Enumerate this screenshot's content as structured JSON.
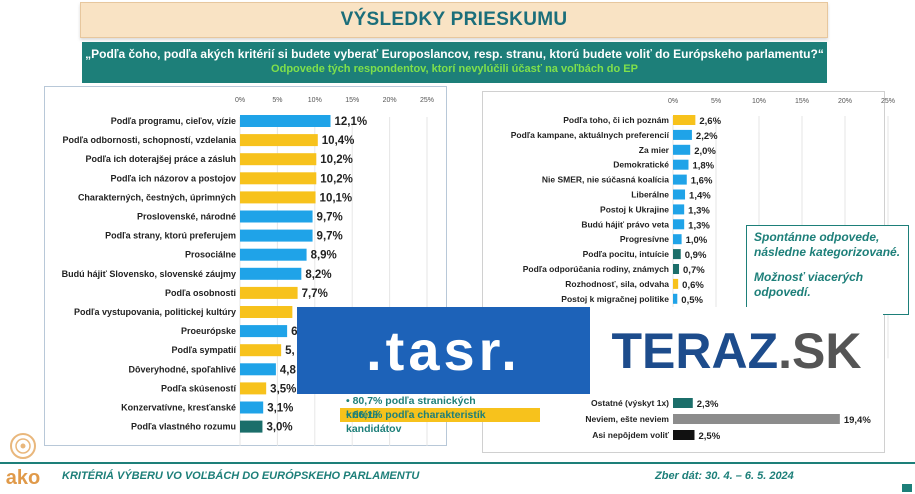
{
  "title": "VÝSLEDKY PRIESKUMU",
  "question": "„Podľa čoho, podľa akých kritérií si budete vyberať Europoslancov, resp. stranu, ktorú budete voliť do Európskeho parlamentu?“",
  "subtitle": "Odpovede tých respondentov, ktorí nevylúčili účasť na voľbách do EP",
  "note": {
    "line1": "Spontánne odpovede, následne kategorizované.",
    "line2": "Možnosť viacerých odpovedí."
  },
  "watermark": {
    "tasr": ".tasr.",
    "teraz_main": "TERAZ",
    "teraz_dot": ".SK"
  },
  "summary": {
    "party": "80,7% podľa stranických kritérií",
    "candidate": "66,1% podľa charakteristík kandidátov"
  },
  "footer": {
    "left": "KRITÉRIÁ VÝBERU VO VOĽBÁCH DO EURÓPSKEHO PARLAMENTU",
    "right": "Zber dát: 30. 4. – 6. 5. 2024"
  },
  "logo_text": "ako",
  "colors": {
    "teal": "#1d7f79",
    "blue": "#1fa3e8",
    "yellow": "#f7c21c",
    "dark_teal": "#1b6e6a",
    "gray": "#8c8c8c",
    "black": "#111111"
  },
  "chart_data": [
    {
      "type": "bar",
      "orientation": "horizontal",
      "xlim": [
        0,
        25
      ],
      "ticks": [
        "0%",
        "5%",
        "10%",
        "15%",
        "20%",
        "25%"
      ],
      "bars": [
        {
          "label": "Podľa programu, cieľov, vízie",
          "value": 12.1,
          "text": "12,1%",
          "color": "blue"
        },
        {
          "label": "Podľa odbornosti, schopností, vzdelania",
          "value": 10.4,
          "text": "10,4%",
          "color": "yellow"
        },
        {
          "label": "Podľa ich doterajšej práce a zásluh",
          "value": 10.2,
          "text": "10,2%",
          "color": "yellow"
        },
        {
          "label": "Podľa ich názorov a postojov",
          "value": 10.2,
          "text": "10,2%",
          "color": "yellow"
        },
        {
          "label": "Charakterných, čestných, úprimných",
          "value": 10.1,
          "text": "10,1%",
          "color": "yellow"
        },
        {
          "label": "Proslovenské, národné",
          "value": 9.7,
          "text": "9,7%",
          "color": "blue"
        },
        {
          "label": "Podľa strany, ktorú preferujem",
          "value": 9.7,
          "text": "9,7%",
          "color": "blue"
        },
        {
          "label": "Prosociálne",
          "value": 8.9,
          "text": "8,9%",
          "color": "blue"
        },
        {
          "label": "Budú hájiť Slovensko, slovenské záujmy",
          "value": 8.2,
          "text": "8,2%",
          "color": "blue"
        },
        {
          "label": "Podľa osobnosti",
          "value": 7.7,
          "text": "7,7%",
          "color": "yellow"
        },
        {
          "label": "Podľa vystupovania, politickej kultúry",
          "value": 7.0,
          "text": "",
          "color": "yellow"
        },
        {
          "label": "Proeurópske",
          "value": 6.3,
          "text": "6",
          "color": "blue"
        },
        {
          "label": "Podľa sympatií",
          "value": 5.5,
          "text": "5,",
          "color": "yellow"
        },
        {
          "label": "Dôveryhodné, spoľahlivé",
          "value": 4.8,
          "text": "4,8",
          "color": "blue"
        },
        {
          "label": "Podľa skúseností",
          "value": 3.5,
          "text": "3,5%",
          "color": "yellow"
        },
        {
          "label": "Konzervatívne, kresťanské",
          "value": 3.1,
          "text": "3,1%",
          "color": "blue"
        },
        {
          "label": "Podľa vlastného rozumu",
          "value": 3.0,
          "text": "3,0%",
          "color": "dark_teal"
        }
      ]
    },
    {
      "type": "bar",
      "orientation": "horizontal",
      "xlim": [
        0,
        25
      ],
      "ticks": [
        "0%",
        "5%",
        "10%",
        "15%",
        "20%",
        "25%"
      ],
      "bars": [
        {
          "label": "Podľa toho, či ich poznám",
          "value": 2.6,
          "text": "2,6%",
          "color": "yellow"
        },
        {
          "label": "Podľa kampane, aktuálnych preferencií",
          "value": 2.2,
          "text": "2,2%",
          "color": "blue"
        },
        {
          "label": "Za mier",
          "value": 2.0,
          "text": "2,0%",
          "color": "blue"
        },
        {
          "label": "Demokratické",
          "value": 1.8,
          "text": "1,8%",
          "color": "blue"
        },
        {
          "label": "Nie SMER, nie súčasná koalícia",
          "value": 1.6,
          "text": "1,6%",
          "color": "blue"
        },
        {
          "label": "Liberálne",
          "value": 1.4,
          "text": "1,4%",
          "color": "blue"
        },
        {
          "label": "Postoj k Ukrajine",
          "value": 1.3,
          "text": "1,3%",
          "color": "blue"
        },
        {
          "label": "Budú hájiť právo veta",
          "value": 1.3,
          "text": "1,3%",
          "color": "blue"
        },
        {
          "label": "Progresívne",
          "value": 1.0,
          "text": "1,0%",
          "color": "blue"
        },
        {
          "label": "Podľa pocitu, intuície",
          "value": 0.9,
          "text": "0,9%",
          "color": "dark_teal"
        },
        {
          "label": "Podľa odporúčania rodiny, známych",
          "value": 0.7,
          "text": "0,7%",
          "color": "dark_teal"
        },
        {
          "label": "Rozhodnosť, sila, odvaha",
          "value": 0.6,
          "text": "0,6%",
          "color": "yellow"
        },
        {
          "label": "Postoj k migračnej politike",
          "value": 0.5,
          "text": "0,5%",
          "color": "blue"
        },
        {
          "label": "Ostatné (výskyt 1x)",
          "value": 2.3,
          "text": "2,3%",
          "color": "dark_teal"
        },
        {
          "label": "Neviem, ešte neviem",
          "value": 19.4,
          "text": "19,4%",
          "color": "gray"
        },
        {
          "label": "Asi nepôjdem voliť",
          "value": 2.5,
          "text": "2,5%",
          "color": "black"
        }
      ]
    }
  ]
}
